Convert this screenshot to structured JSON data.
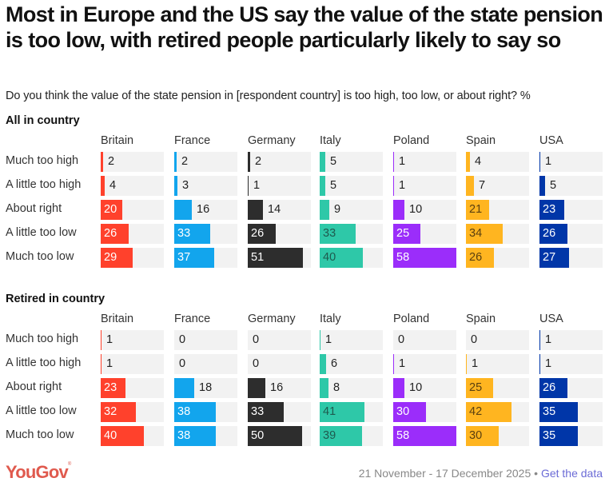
{
  "header": {
    "title": "Most in Europe and the US say the value of the state pension is too low, with retired people particularly likely to say so",
    "subtitle": "Do you think the value of the state pension in [respondent country] is too high, too low, or about right? %"
  },
  "footer": {
    "logo": "YouGov",
    "date_range": "21 November - 17 December 2025",
    "separator": "•",
    "link_label": "Get the data"
  },
  "chart_data": {
    "type": "bar",
    "orientation": "horizontal",
    "layout": "small-multiples",
    "title": "Most in Europe and the US say the value of the state pension is too low, with retired people particularly likely to say so",
    "subtitle": "Do you think the value of the state pension in [respondent country] is too high, too low, or about right? %",
    "xlim": [
      0,
      58
    ],
    "categories": [
      "Much too high",
      "A little too high",
      "About right",
      "A little too low",
      "Much too low"
    ],
    "countries": [
      "Britain",
      "France",
      "Germany",
      "Italy",
      "Poland",
      "Spain",
      "USA"
    ],
    "colors": {
      "Britain": "#ff412c",
      "France": "#12a5ed",
      "Germany": "#2d2d2d",
      "Italy": "#2ec8a8",
      "Poland": "#9b2dfa",
      "Spain": "#ffb520",
      "USA": "#0036a8"
    },
    "inner_label_colors": {
      "Britain": "#ffffff",
      "France": "#ffffff",
      "Germany": "#ffffff",
      "Italy": "#1e5a4e",
      "Poland": "#ffffff",
      "Spain": "#5a4010",
      "USA": "#ffffff"
    },
    "panels": [
      {
        "name": "All in country",
        "series": [
          {
            "name": "Britain",
            "values": [
              2,
              4,
              20,
              26,
              29
            ]
          },
          {
            "name": "France",
            "values": [
              2,
              3,
              16,
              33,
              37
            ]
          },
          {
            "name": "Germany",
            "values": [
              2,
              1,
              14,
              26,
              51
            ]
          },
          {
            "name": "Italy",
            "values": [
              5,
              5,
              9,
              33,
              40
            ]
          },
          {
            "name": "Poland",
            "values": [
              1,
              1,
              10,
              25,
              58
            ]
          },
          {
            "name": "Spain",
            "values": [
              4,
              7,
              21,
              34,
              26
            ]
          },
          {
            "name": "USA",
            "values": [
              1,
              5,
              23,
              26,
              27
            ]
          }
        ]
      },
      {
        "name": "Retired in country",
        "series": [
          {
            "name": "Britain",
            "values": [
              1,
              1,
              23,
              32,
              40
            ]
          },
          {
            "name": "France",
            "values": [
              0,
              0,
              18,
              38,
              38
            ]
          },
          {
            "name": "Germany",
            "values": [
              0,
              0,
              16,
              33,
              50
            ]
          },
          {
            "name": "Italy",
            "values": [
              1,
              6,
              8,
              41,
              39
            ]
          },
          {
            "name": "Poland",
            "values": [
              0,
              1,
              10,
              30,
              58
            ]
          },
          {
            "name": "Spain",
            "values": [
              0,
              1,
              25,
              42,
              30
            ]
          },
          {
            "name": "USA",
            "values": [
              1,
              1,
              26,
              35,
              35
            ]
          }
        ]
      }
    ]
  }
}
